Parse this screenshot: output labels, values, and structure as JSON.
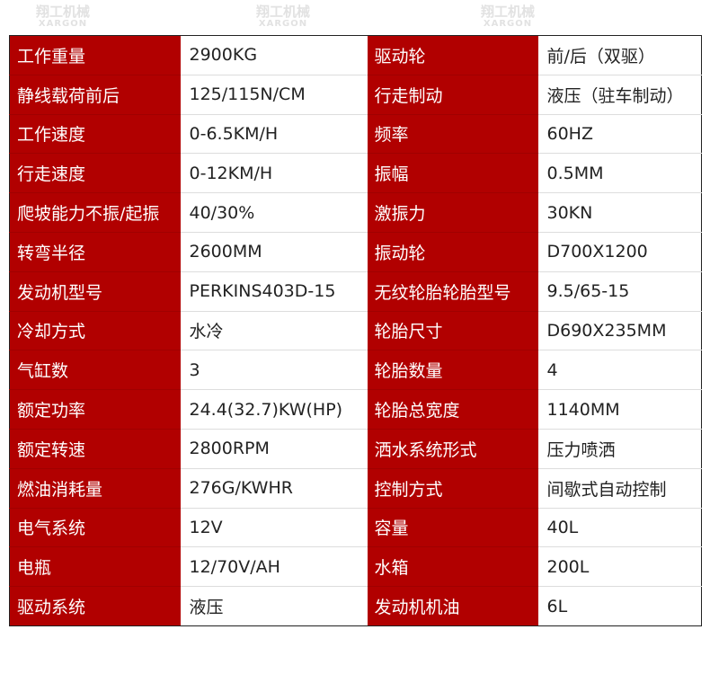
{
  "watermark": {
    "cn": "翔工机械",
    "en": "XARGON"
  },
  "colors": {
    "label_bg": "#b10000",
    "label_text": "#ffffff",
    "value_text": "#222222"
  },
  "rows": [
    {
      "k1": "工作重量",
      "v1": "2900KG",
      "k2": "驱动轮",
      "v2": "前/后（双驱）"
    },
    {
      "k1": "静线载荷前后",
      "v1": "125/115N/CM",
      "k2": "行走制动",
      "v2": "液压（驻车制动）"
    },
    {
      "k1": "工作速度",
      "v1": "0-6.5KM/H",
      "k2": "频率",
      "v2": "60HZ"
    },
    {
      "k1": "行走速度",
      "v1": "0-12KM/H",
      "k2": "振幅",
      "v2": "0.5MM"
    },
    {
      "k1": "爬坡能力不振/起振",
      "v1": "40/30%",
      "k2": "激振力",
      "v2": "30KN"
    },
    {
      "k1": "转弯半径",
      "v1": "2600MM",
      "k2": "振动轮",
      "v2": "D700X1200"
    },
    {
      "k1": "发动机型号",
      "v1": "PERKINS403D-15",
      "k2": "无纹轮胎轮胎型号",
      "v2": "9.5/65-15"
    },
    {
      "k1": "冷却方式",
      "v1": "水冷",
      "k2": "轮胎尺寸",
      "v2": "D690X235MM"
    },
    {
      "k1": "气缸数",
      "v1": "3",
      "k2": "轮胎数量",
      "v2": "4"
    },
    {
      "k1": "额定功率",
      "v1": "24.4(32.7)KW(HP)",
      "k2": "轮胎总宽度",
      "v2": "1140MM"
    },
    {
      "k1": "额定转速",
      "v1": "2800RPM",
      "k2": "洒水系统形式",
      "v2": "压力喷洒"
    },
    {
      "k1": "燃油消耗量",
      "v1": "276G/KWHR",
      "k2": "控制方式",
      "v2": "间歇式自动控制"
    },
    {
      "k1": "电气系统",
      "v1": "12V",
      "k2": "容量",
      "v2": "40L"
    },
    {
      "k1": "电瓶",
      "v1": "12/70V/AH",
      "k2": "水箱",
      "v2": "200L"
    },
    {
      "k1": "驱动系统",
      "v1": "液压",
      "k2": "发动机机油",
      "v2": "6L"
    }
  ]
}
